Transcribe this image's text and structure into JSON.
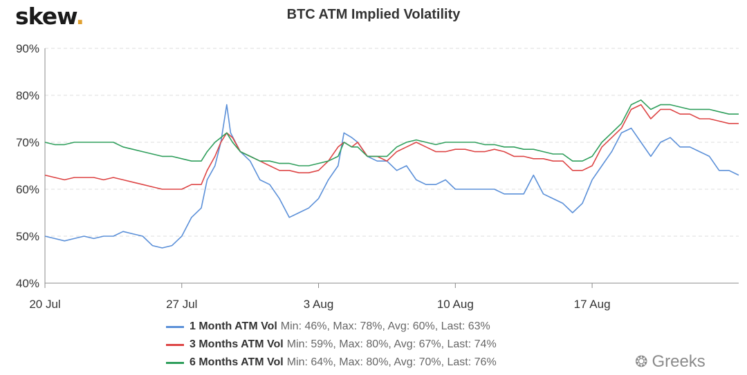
{
  "header": {
    "logo_text": "skew",
    "logo_dot": ".",
    "title": "BTC ATM Implied Volatility"
  },
  "watermark": {
    "icon": "wechat-icon",
    "text": "Greeks"
  },
  "colors": {
    "gridline": "#dddddd",
    "axis": "#888888",
    "series_1m": "#5a8fd8",
    "series_3m": "#dd4444",
    "series_6m": "#2e9e5b"
  },
  "legend": [
    {
      "name": "1 Month ATM Vol",
      "stats": "Min: 46%, Max: 78%, Avg: 60%, Last: 63%",
      "color": "#5a8fd8"
    },
    {
      "name": "3 Months ATM Vol",
      "stats": "Min: 59%, Max: 80%, Avg: 67%, Last: 74%",
      "color": "#dd4444"
    },
    {
      "name": "6 Months ATM Vol",
      "stats": "Min: 64%, Max: 80%, Avg: 70%, Last: 76%",
      "color": "#2e9e5b"
    }
  ],
  "chart_data": {
    "type": "line",
    "title": "BTC ATM Implied Volatility",
    "xlabel": "",
    "ylabel": "",
    "x_unit": "days from 20 Jul",
    "xlim": [
      0,
      35.5
    ],
    "ylim": [
      40,
      90
    ],
    "y_ticks": [
      40,
      50,
      60,
      70,
      80,
      90
    ],
    "y_tick_labels": [
      "40%",
      "50%",
      "60%",
      "70%",
      "80%",
      "90%"
    ],
    "x_ticks": [
      0,
      7,
      14,
      21,
      28
    ],
    "x_tick_labels": [
      "20 Jul",
      "27 Jul",
      "3 Aug",
      "10 Aug",
      "17 Aug"
    ],
    "grid": "horizontal dashed",
    "legend_position": "bottom",
    "series": [
      {
        "name": "1 Month ATM Vol",
        "color": "#5a8fd8",
        "points": [
          [
            0,
            50
          ],
          [
            0.5,
            49.5
          ],
          [
            1,
            49
          ],
          [
            1.5,
            49.5
          ],
          [
            2,
            50
          ],
          [
            2.5,
            49.5
          ],
          [
            3,
            50
          ],
          [
            3.5,
            50
          ],
          [
            4,
            51
          ],
          [
            4.5,
            50.5
          ],
          [
            5,
            50
          ],
          [
            5.5,
            48
          ],
          [
            6,
            47.5
          ],
          [
            6.5,
            48
          ],
          [
            7,
            50
          ],
          [
            7.5,
            54
          ],
          [
            8,
            56
          ],
          [
            8.3,
            62
          ],
          [
            8.7,
            65
          ],
          [
            9,
            70
          ],
          [
            9.3,
            78
          ],
          [
            9.5,
            72
          ],
          [
            10,
            68
          ],
          [
            10.5,
            66
          ],
          [
            11,
            62
          ],
          [
            11.5,
            61
          ],
          [
            12,
            58
          ],
          [
            12.5,
            54
          ],
          [
            13,
            55
          ],
          [
            13.5,
            56
          ],
          [
            14,
            58
          ],
          [
            14.5,
            62
          ],
          [
            15,
            65
          ],
          [
            15.3,
            72
          ],
          [
            15.7,
            71
          ],
          [
            16,
            70
          ],
          [
            16.5,
            67
          ],
          [
            17,
            66
          ],
          [
            17.5,
            66
          ],
          [
            18,
            64
          ],
          [
            18.5,
            65
          ],
          [
            19,
            62
          ],
          [
            19.5,
            61
          ],
          [
            20,
            61
          ],
          [
            20.5,
            62
          ],
          [
            21,
            60
          ],
          [
            21.5,
            60
          ],
          [
            22,
            60
          ],
          [
            22.5,
            60
          ],
          [
            23,
            60
          ],
          [
            23.5,
            59
          ],
          [
            24,
            59
          ],
          [
            24.5,
            59
          ],
          [
            25,
            63
          ],
          [
            25.5,
            59
          ],
          [
            26,
            58
          ],
          [
            26.5,
            57
          ],
          [
            27,
            55
          ],
          [
            27.5,
            57
          ],
          [
            28,
            62
          ],
          [
            28.5,
            65
          ],
          [
            29,
            68
          ],
          [
            29.5,
            72
          ],
          [
            30,
            73
          ],
          [
            30.5,
            70
          ],
          [
            31,
            67
          ],
          [
            31.5,
            70
          ],
          [
            32,
            71
          ],
          [
            32.5,
            69
          ],
          [
            33,
            69
          ],
          [
            33.5,
            68
          ],
          [
            34,
            67
          ],
          [
            34.5,
            64
          ],
          [
            35,
            64
          ],
          [
            35.5,
            63
          ]
        ]
      },
      {
        "name": "3 Months ATM Vol",
        "color": "#dd4444",
        "points": [
          [
            0,
            63
          ],
          [
            0.5,
            62.5
          ],
          [
            1,
            62
          ],
          [
            1.5,
            62.5
          ],
          [
            2,
            62.5
          ],
          [
            2.5,
            62.5
          ],
          [
            3,
            62
          ],
          [
            3.5,
            62.5
          ],
          [
            4,
            62
          ],
          [
            4.5,
            61.5
          ],
          [
            5,
            61
          ],
          [
            5.5,
            60.5
          ],
          [
            6,
            60
          ],
          [
            6.5,
            60
          ],
          [
            7,
            60
          ],
          [
            7.5,
            61
          ],
          [
            8,
            61
          ],
          [
            8.3,
            64
          ],
          [
            8.7,
            67
          ],
          [
            9,
            70
          ],
          [
            9.3,
            72
          ],
          [
            9.6,
            71
          ],
          [
            10,
            68
          ],
          [
            10.5,
            67
          ],
          [
            11,
            66
          ],
          [
            11.5,
            65
          ],
          [
            12,
            64
          ],
          [
            12.5,
            64
          ],
          [
            13,
            63.5
          ],
          [
            13.5,
            63.5
          ],
          [
            14,
            64
          ],
          [
            14.5,
            66
          ],
          [
            15,
            69
          ],
          [
            15.3,
            70
          ],
          [
            15.7,
            69
          ],
          [
            16,
            70
          ],
          [
            16.5,
            67
          ],
          [
            17,
            67
          ],
          [
            17.5,
            66
          ],
          [
            18,
            68
          ],
          [
            18.5,
            69
          ],
          [
            19,
            70
          ],
          [
            19.5,
            69
          ],
          [
            20,
            68
          ],
          [
            20.5,
            68
          ],
          [
            21,
            68.5
          ],
          [
            21.5,
            68.5
          ],
          [
            22,
            68
          ],
          [
            22.5,
            68
          ],
          [
            23,
            68.5
          ],
          [
            23.5,
            68
          ],
          [
            24,
            67
          ],
          [
            24.5,
            67
          ],
          [
            25,
            66.5
          ],
          [
            25.5,
            66.5
          ],
          [
            26,
            66
          ],
          [
            26.5,
            66
          ],
          [
            27,
            64
          ],
          [
            27.5,
            64
          ],
          [
            28,
            65
          ],
          [
            28.5,
            69
          ],
          [
            29,
            71
          ],
          [
            29.5,
            73
          ],
          [
            30,
            77
          ],
          [
            30.5,
            78
          ],
          [
            31,
            75
          ],
          [
            31.5,
            77
          ],
          [
            32,
            77
          ],
          [
            32.5,
            76
          ],
          [
            33,
            76
          ],
          [
            33.5,
            75
          ],
          [
            34,
            75
          ],
          [
            34.5,
            74.5
          ],
          [
            35,
            74
          ],
          [
            35.5,
            74
          ]
        ]
      },
      {
        "name": "6 Months ATM Vol",
        "color": "#2e9e5b",
        "points": [
          [
            0,
            70
          ],
          [
            0.5,
            69.5
          ],
          [
            1,
            69.5
          ],
          [
            1.5,
            70
          ],
          [
            2,
            70
          ],
          [
            2.5,
            70
          ],
          [
            3,
            70
          ],
          [
            3.5,
            70
          ],
          [
            4,
            69
          ],
          [
            4.5,
            68.5
          ],
          [
            5,
            68
          ],
          [
            5.5,
            67.5
          ],
          [
            6,
            67
          ],
          [
            6.5,
            67
          ],
          [
            7,
            66.5
          ],
          [
            7.5,
            66
          ],
          [
            8,
            66
          ],
          [
            8.3,
            68
          ],
          [
            8.7,
            70
          ],
          [
            9,
            71
          ],
          [
            9.3,
            72
          ],
          [
            9.6,
            70
          ],
          [
            10,
            68
          ],
          [
            10.5,
            67
          ],
          [
            11,
            66
          ],
          [
            11.5,
            66
          ],
          [
            12,
            65.5
          ],
          [
            12.5,
            65.5
          ],
          [
            13,
            65
          ],
          [
            13.5,
            65
          ],
          [
            14,
            65.5
          ],
          [
            14.5,
            66
          ],
          [
            15,
            67
          ],
          [
            15.3,
            70
          ],
          [
            15.7,
            69
          ],
          [
            16,
            69
          ],
          [
            16.5,
            67
          ],
          [
            17,
            67
          ],
          [
            17.5,
            67
          ],
          [
            18,
            69
          ],
          [
            18.5,
            70
          ],
          [
            19,
            70.5
          ],
          [
            19.5,
            70
          ],
          [
            20,
            69.5
          ],
          [
            20.5,
            70
          ],
          [
            21,
            70
          ],
          [
            21.5,
            70
          ],
          [
            22,
            70
          ],
          [
            22.5,
            69.5
          ],
          [
            23,
            69.5
          ],
          [
            23.5,
            69
          ],
          [
            24,
            69
          ],
          [
            24.5,
            68.5
          ],
          [
            25,
            68.5
          ],
          [
            25.5,
            68
          ],
          [
            26,
            67.5
          ],
          [
            26.5,
            67.5
          ],
          [
            27,
            66
          ],
          [
            27.5,
            66
          ],
          [
            28,
            67
          ],
          [
            28.5,
            70
          ],
          [
            29,
            72
          ],
          [
            29.5,
            74
          ],
          [
            30,
            78
          ],
          [
            30.5,
            79
          ],
          [
            31,
            77
          ],
          [
            31.5,
            78
          ],
          [
            32,
            78
          ],
          [
            32.5,
            77.5
          ],
          [
            33,
            77
          ],
          [
            33.5,
            77
          ],
          [
            34,
            77
          ],
          [
            34.5,
            76.5
          ],
          [
            35,
            76
          ],
          [
            35.5,
            76
          ]
        ]
      }
    ]
  }
}
